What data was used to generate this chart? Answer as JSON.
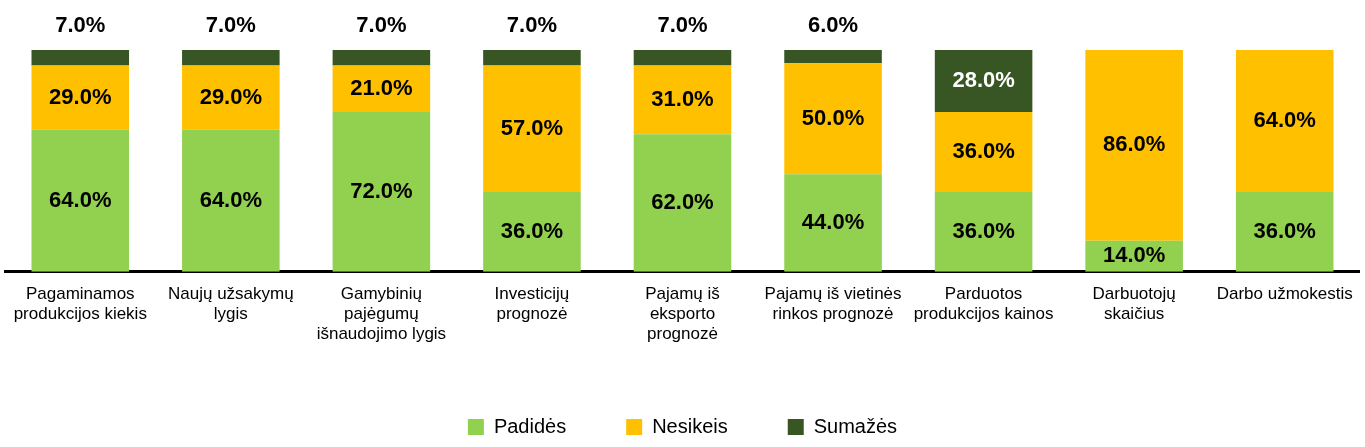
{
  "chart_data": {
    "type": "bar",
    "stacked": true,
    "legend": "bottom",
    "grid": false,
    "categories": [
      "Pagaminamos produkcijos kiekis",
      "Naujų užsakymų lygis",
      "Gamybinių pajėgumų išnaudojimo lygis",
      "Investicijų prognozė",
      "Pajamų iš eksporto prognozė",
      "Pajamų iš vietinės rinkos prognozė",
      "Parduotos produkcijos kainos",
      "Darbuotojų skaičius",
      "Darbo užmokestis"
    ],
    "series": [
      {
        "name": "Padidės",
        "color": "#92d050",
        "values": [
          64,
          64,
          72,
          36,
          62,
          44,
          36,
          14,
          36
        ],
        "value_labels": [
          "64.0%",
          "64.0%",
          "72.0%",
          "36.0%",
          "62.0%",
          "44.0%",
          "36.0%",
          "14.0%",
          "36.0%"
        ]
      },
      {
        "name": "Nesikeis",
        "color": "#ffc000",
        "values": [
          29,
          29,
          21,
          57,
          31,
          50,
          36,
          86,
          64
        ],
        "value_labels": [
          "29.0%",
          "29.0%",
          "21.0%",
          "57.0%",
          "31.0%",
          "50.0%",
          "36.0%",
          "86.0%",
          "64.0%"
        ]
      },
      {
        "name": "Sumažės",
        "color": "#375623",
        "values": [
          7,
          7,
          7,
          7,
          7,
          6,
          28,
          null,
          null
        ],
        "value_labels": [
          "7.0%",
          "7.0%",
          "7.0%",
          "7.0%",
          "7.0%",
          "6.0%",
          "28.0%",
          null,
          null
        ]
      }
    ]
  }
}
